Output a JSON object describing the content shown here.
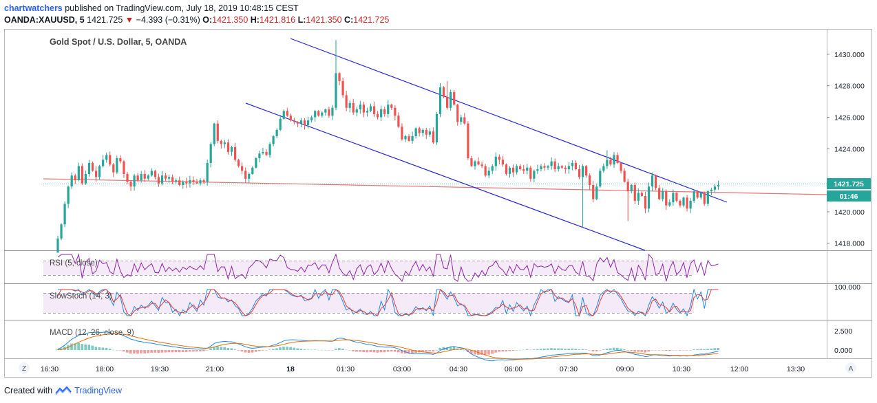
{
  "header": {
    "publisher": "chartwatchers",
    "published_text": "published on TradingView.com, July 18, 2019 10:48:15 CEST",
    "symbol": "OANDA:XAUUSD, 5",
    "last": "1421.725",
    "change": "−4.393 (−0.31%)",
    "o_label": "O:",
    "o": "1421.350",
    "h_label": "H:",
    "h": "1421.816",
    "l_label": "L:",
    "l": "1421.350",
    "c_label": "C:",
    "c": "1421.725"
  },
  "chart_data": [
    {
      "type": "candlestick",
      "title": "Gold Spot / U.S. Dollar, 5, OANDA",
      "y_ticks": [
        1418,
        1420,
        1422,
        1424,
        1426,
        1428,
        1430
      ],
      "y_tick_labels": [
        "1418.000",
        "1420.000",
        "1422.000",
        "1424.000",
        "1426.000",
        "1428.000",
        "1430.000"
      ],
      "ylim": [
        1417.6,
        1431.3
      ],
      "x_tick_labels": [
        "16:30",
        "18:00",
        "19:30",
        "21:00",
        "18",
        "01:30",
        "03:00",
        "04:30",
        "06:00",
        "07:30",
        "09:00",
        "10:30",
        "12:00",
        "13:30"
      ],
      "last_price_label": "1421.725",
      "countdown_label": "01:46",
      "bar_count": 186,
      "colors": {
        "up": "#26a69a",
        "down": "#ef5350",
        "channel": "#2727d8",
        "trendline": "#e57373"
      },
      "price_levels": [
        1417.4,
        1418.3,
        1419.2,
        1420.5,
        1421.6,
        1422.3,
        1422.0,
        1422.9,
        1421.8,
        1422.4,
        1423.1,
        1422.6,
        1422.2,
        1422.9,
        1423.3,
        1423.6,
        1423.0,
        1422.5,
        1423.4,
        1423.2,
        1422.4,
        1421.9,
        1421.6,
        1422.3,
        1422.0,
        1422.4,
        1422.1,
        1422.3,
        1422.6,
        1422.2,
        1421.8,
        1422.3,
        1422.1,
        1422.2,
        1421.9,
        1422.0,
        1421.7,
        1421.9,
        1421.8,
        1422.0,
        1421.9,
        1421.8,
        1422.0,
        1421.9,
        1423.1,
        1424.3,
        1425.6,
        1424.5,
        1424.3,
        1424.4,
        1423.8,
        1424.1,
        1423.3,
        1422.9,
        1422.6,
        1422.1,
        1422.4,
        1422.8,
        1423.4,
        1423.7,
        1423.8,
        1423.6,
        1424.3,
        1424.8,
        1425.2,
        1425.9,
        1426.4,
        1426.1,
        1425.8,
        1425.7,
        1425.6,
        1425.8,
        1425.5,
        1425.8,
        1426.0,
        1426.4,
        1426.1,
        1426.3,
        1426.5,
        1426.1,
        1426.6,
        1428.8,
        1428.3,
        1427.4,
        1426.6,
        1426.9,
        1426.3,
        1426.5,
        1426.8,
        1426.3,
        1426.4,
        1426.7,
        1426.2,
        1426.0,
        1426.5,
        1426.2,
        1426.8,
        1426.6,
        1426.1,
        1425.4,
        1424.6,
        1424.8,
        1424.5,
        1424.8,
        1425.3,
        1425.0,
        1425.2,
        1424.9,
        1425.1,
        1424.4,
        1426.2,
        1427.9,
        1427.3,
        1426.6,
        1427.6,
        1426.8,
        1425.7,
        1426.0,
        1425.6,
        1423.4,
        1422.9,
        1423.2,
        1423.0,
        1422.9,
        1422.3,
        1422.6,
        1422.9,
        1423.5,
        1423.3,
        1423.0,
        1422.4,
        1422.8,
        1422.5,
        1422.9,
        1422.7,
        1422.6,
        1422.8,
        1422.1,
        1422.6,
        1422.7,
        1422.9,
        1422.8,
        1422.9,
        1423.2,
        1422.7,
        1422.9,
        1422.8,
        1422.7,
        1422.9,
        1423.1,
        1422.7,
        1422.2,
        1422.9,
        1422.3,
        1421.7,
        1420.8,
        1421.6,
        1422.6,
        1422.9,
        1423.3,
        1423.0,
        1423.6,
        1423.1,
        1422.6,
        1421.9,
        1421.3,
        1421.7,
        1420.7,
        1421.2,
        1421.0,
        1420.2,
        1421.6,
        1422.3,
        1421.5,
        1420.8,
        1421.3,
        1420.4,
        1420.6,
        1421.2,
        1420.7,
        1420.4,
        1420.9,
        1420.2,
        1420.7,
        1421.3,
        1420.9,
        1421.2,
        1420.5,
        1421.3,
        1421.4,
        1421.6,
        1421.7
      ]
    },
    {
      "type": "line",
      "title": "RSI (5, close)",
      "levels": [
        30,
        70
      ]
    },
    {
      "type": "line",
      "title": "SlowStoch (14, 3)",
      "y_tick_labels": [
        "100.000"
      ]
    },
    {
      "type": "line",
      "title": "MACD (12, 26, close, 9)",
      "y_tick_labels": [
        "2.500",
        "0.000"
      ]
    }
  ],
  "footer": {
    "created_with": "Created with",
    "brand": "TradingView",
    "left_button": "Z",
    "right_button": "A"
  }
}
